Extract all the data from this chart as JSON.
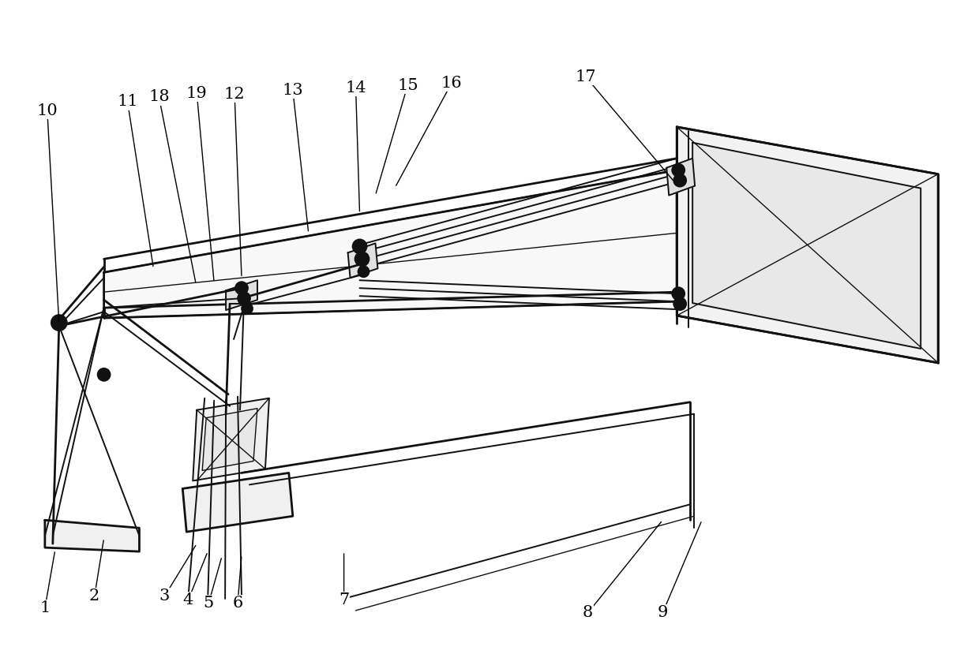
{
  "bg_color": "#ffffff",
  "lc": "#111111",
  "lw_heavy": 2.0,
  "lw_mid": 1.4,
  "lw_light": 1.0,
  "label_fontsize": 15,
  "label_color": "#000000",
  "label_specs": {
    "1": {
      "lpos": [
        55,
        772
      ],
      "apt": [
        68,
        698
      ]
    },
    "2": {
      "lpos": [
        118,
        757
      ],
      "apt": [
        130,
        683
      ]
    },
    "3": {
      "lpos": [
        207,
        757
      ],
      "apt": [
        248,
        690
      ]
    },
    "4": {
      "lpos": [
        237,
        762
      ],
      "apt": [
        262,
        700
      ]
    },
    "5": {
      "lpos": [
        263,
        766
      ],
      "apt": [
        280,
        706
      ]
    },
    "6": {
      "lpos": [
        300,
        766
      ],
      "apt": [
        305,
        704
      ]
    },
    "7": {
      "lpos": [
        435,
        762
      ],
      "apt": [
        435,
        700
      ]
    },
    "8": {
      "lpos": [
        745,
        778
      ],
      "apt": [
        840,
        660
      ]
    },
    "9": {
      "lpos": [
        840,
        778
      ],
      "apt": [
        890,
        660
      ]
    },
    "10": {
      "lpos": [
        58,
        140
      ],
      "apt": [
        73,
        410
      ]
    },
    "11": {
      "lpos": [
        160,
        128
      ],
      "apt": [
        193,
        340
      ]
    },
    "12": {
      "lpos": [
        296,
        118
      ],
      "apt": [
        305,
        352
      ]
    },
    "13": {
      "lpos": [
        370,
        113
      ],
      "apt": [
        390,
        295
      ]
    },
    "14": {
      "lpos": [
        450,
        110
      ],
      "apt": [
        455,
        270
      ]
    },
    "15": {
      "lpos": [
        516,
        107
      ],
      "apt": [
        475,
        247
      ]
    },
    "16": {
      "lpos": [
        572,
        104
      ],
      "apt": [
        500,
        237
      ]
    },
    "17": {
      "lpos": [
        742,
        96
      ],
      "apt": [
        855,
        230
      ]
    },
    "18": {
      "lpos": [
        200,
        122
      ],
      "apt": [
        247,
        360
      ]
    },
    "19": {
      "lpos": [
        248,
        117
      ],
      "apt": [
        270,
        358
      ]
    }
  }
}
